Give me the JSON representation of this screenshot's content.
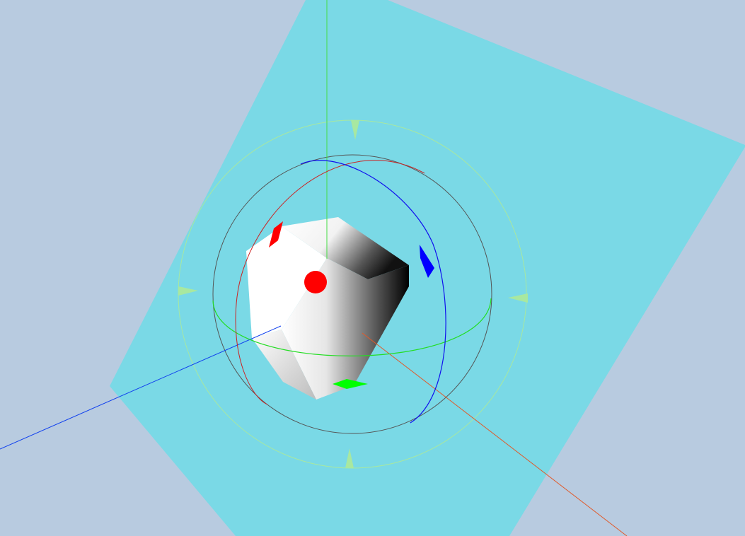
{
  "scene": {
    "background_color": "#b8cbe0",
    "ground_plane_color": "#7ad9e6",
    "cube": {
      "light_face_color": "#ffffff",
      "dark_shade_color": "#000000",
      "center_marker_color": "#ff0000"
    },
    "axes": {
      "x_color": "#e05a2a",
      "y_color": "#44dd44",
      "z_color": "#1040ee"
    }
  },
  "gizmo": {
    "mode": "rotate",
    "outer_ring_color": "#a8e8a0",
    "trackball_ring_color": "#555555",
    "x_ring_color": "#cc2222",
    "y_ring_color": "#22dd22",
    "z_ring_color": "#1010ee",
    "x_handle_color": "#ff0000",
    "y_handle_color": "#00ff00",
    "z_handle_color": "#0000ff",
    "arrow_marker_color": "#a8e8a0"
  }
}
